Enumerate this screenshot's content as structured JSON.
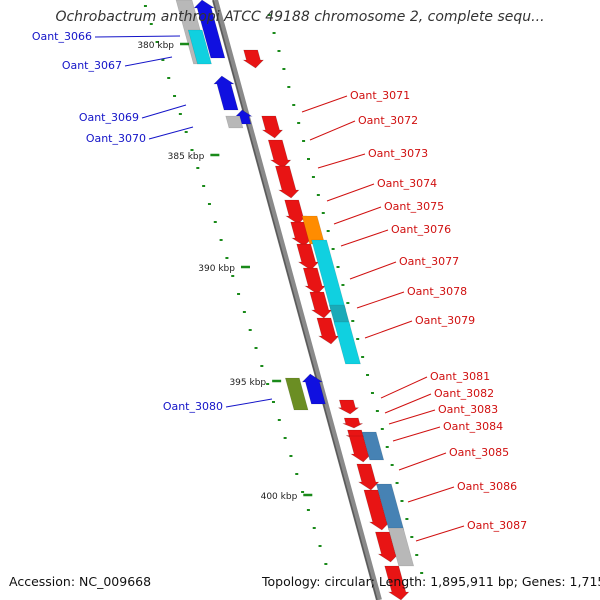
{
  "title": "Ochrobactrum anthropi ATCC 49188 chromosome 2, complete sequ...",
  "footer": {
    "accession": "Accession: NC_009668",
    "summary": "Topology: circular; Length: 1,895,911 bp; Genes: 1,715"
  },
  "colors": {
    "backbone": "#8a8a8a",
    "tick": "#1a8a1a",
    "forward_label": "#1414c8",
    "reverse_label": "#d01010",
    "forward_gene": "#1010e0",
    "reverse_gene": "#e81414",
    "cyan": "#10d0e0",
    "teal": "#1aaab8",
    "orange": "#ff8c00",
    "grey": "#b8b8b8",
    "olive": "#6b8e23",
    "steel": "#4682b4"
  },
  "scale_labels": [
    "380 kbp",
    "385 kbp",
    "390 kbp",
    "395 kbp",
    "400 kbp"
  ],
  "forward_labels": [
    "Oant_3066",
    "Oant_3067",
    "Oant_3069",
    "Oant_3070",
    "Oant_3080"
  ],
  "reverse_labels": [
    "Oant_3071",
    "Oant_3072",
    "Oant_3073",
    "Oant_3074",
    "Oant_3075",
    "Oant_3076",
    "Oant_3077",
    "Oant_3078",
    "Oant_3079",
    "Oant_3081",
    "Oant_3082",
    "Oant_3083",
    "Oant_3084",
    "Oant_3085",
    "Oant_3086",
    "Oant_3087"
  ]
}
